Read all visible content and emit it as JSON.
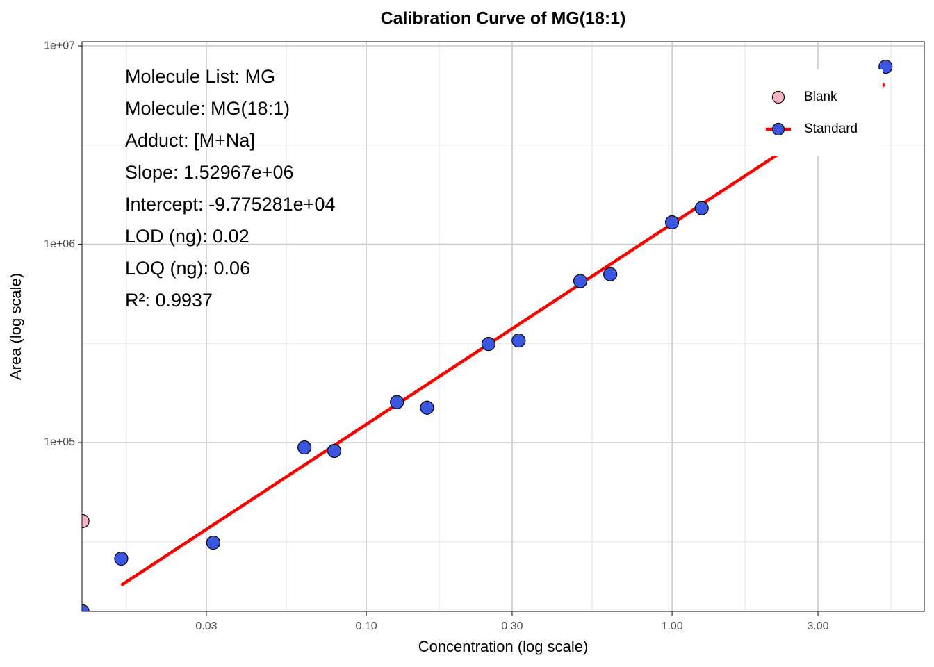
{
  "chart_data": {
    "type": "scatter",
    "title": "Calibration Curve of MG(18:1)",
    "x_label": "Concentration (log scale)",
    "y_label": "Area (log scale)",
    "xscale": "log",
    "yscale": "log",
    "xlim": [
      0.01176,
      6.68
    ],
    "ylim": [
      14090,
      10500000
    ],
    "xticks": [
      0.03,
      {
        "value": 0.1,
        "label": "0.10"
      },
      {
        "value": 0.3,
        "label": "0.30"
      },
      {
        "value": 1,
        "label": "1.00"
      },
      {
        "value": 3,
        "label": "3.00"
      }
    ],
    "yticks": [
      {
        "value": 100000,
        "label": "1e+05"
      },
      {
        "value": 1000000,
        "label": "1e+06"
      },
      {
        "value": 10000000,
        "label": "1e+07"
      }
    ],
    "grid": true,
    "legend": "top-right",
    "annotations": [
      "Molecule List: MG",
      "Molecule: MG(18:1)",
      "Adduct: [M+Na]",
      "Slope: 1.52967e+06",
      "Intercept: -9.775281e+04",
      "LOD (ng): 0.02",
      "LOQ (ng): 0.06",
      "R²: 0.9937"
    ],
    "series": [
      {
        "name": "Blank",
        "color": "#f7b3c2",
        "x": [
          0.0118
        ],
        "values": [
          40200
        ]
      },
      {
        "name": "Standard",
        "color": "#3b56e0",
        "line_color": "#ff0000",
        "x": [
          0.0118,
          0.0158,
          0.0316,
          0.0628,
          0.0786,
          0.126,
          0.158,
          0.251,
          0.315,
          0.501,
          0.628,
          1.0,
          1.25,
          4.99
        ],
        "values": [
          14100,
          26000,
          31300,
          94500,
          90800,
          160000,
          150000,
          314000,
          327000,
          652000,
          706000,
          1290000,
          1520000,
          7850000
        ],
        "fit": {
          "x": [
            0.0158,
            4.96
          ],
          "values": [
            19100,
            6410000
          ]
        }
      }
    ]
  }
}
